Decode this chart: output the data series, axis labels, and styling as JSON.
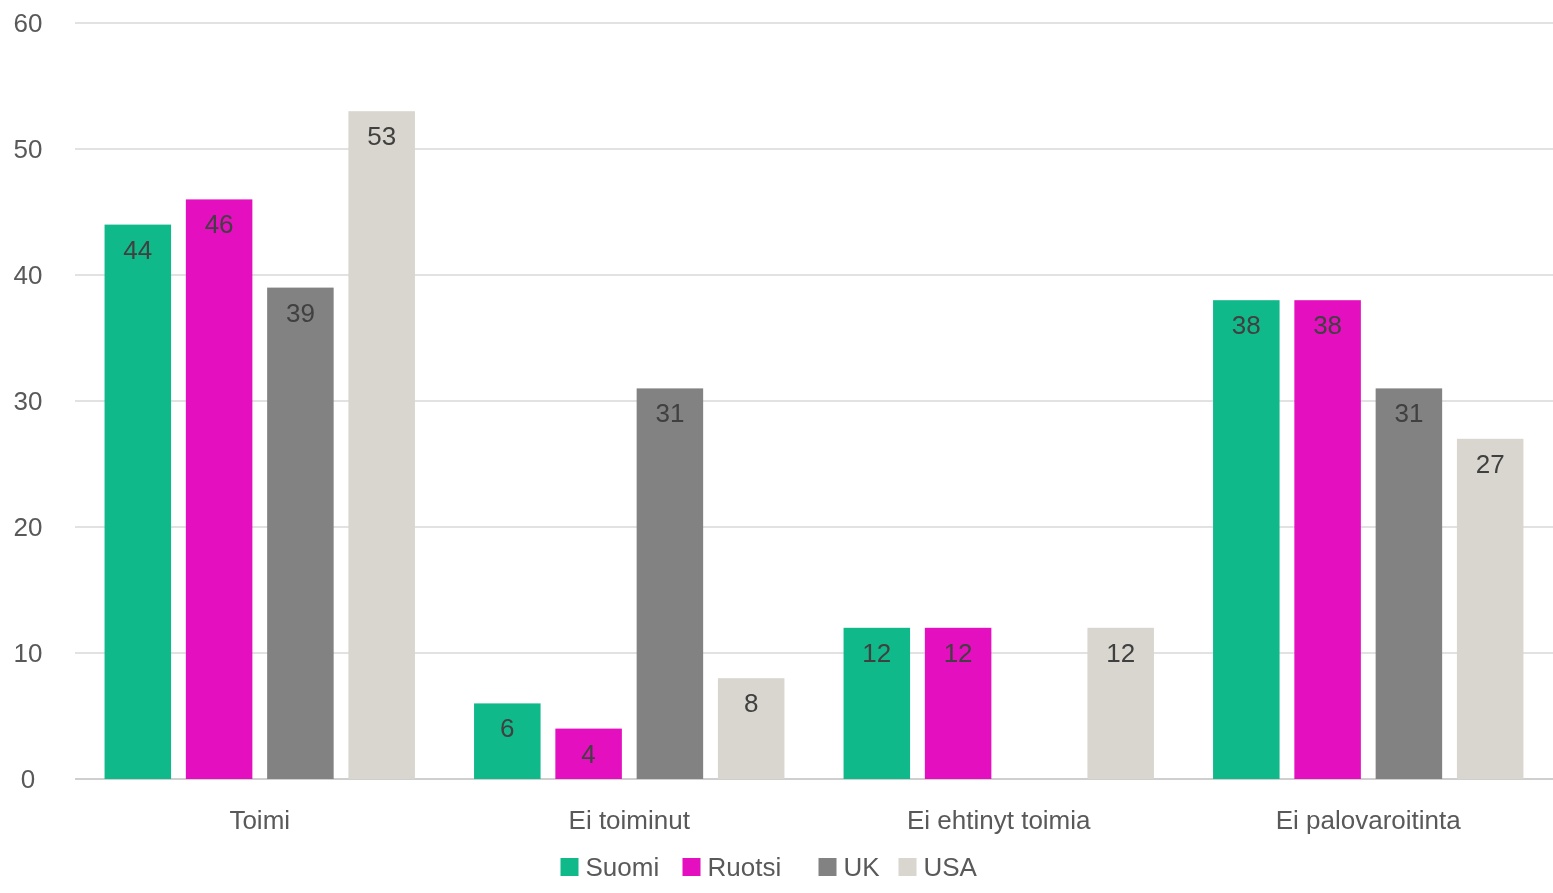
{
  "chart_data": {
    "type": "bar",
    "categories": [
      "Toimi",
      "Ei toiminut",
      "Ei ehtinyt toimia",
      "Ei palovaroitinta"
    ],
    "series": [
      {
        "name": "Suomi",
        "color": "#10b98a",
        "values": [
          44,
          6,
          12,
          38
        ]
      },
      {
        "name": "Ruotsi",
        "color": "#e40fbf",
        "values": [
          46,
          4,
          12,
          38
        ]
      },
      {
        "name": "UK",
        "color": "#828282",
        "values": [
          39,
          31,
          null,
          31
        ]
      },
      {
        "name": "USA",
        "color": "#d9d6d0",
        "values": [
          53,
          8,
          12,
          27
        ]
      }
    ],
    "ylim": [
      0,
      60
    ],
    "yticks": [
      0,
      10,
      20,
      30,
      40,
      50,
      60
    ],
    "grid": "y",
    "legend": "bottom",
    "data_labels": true
  }
}
